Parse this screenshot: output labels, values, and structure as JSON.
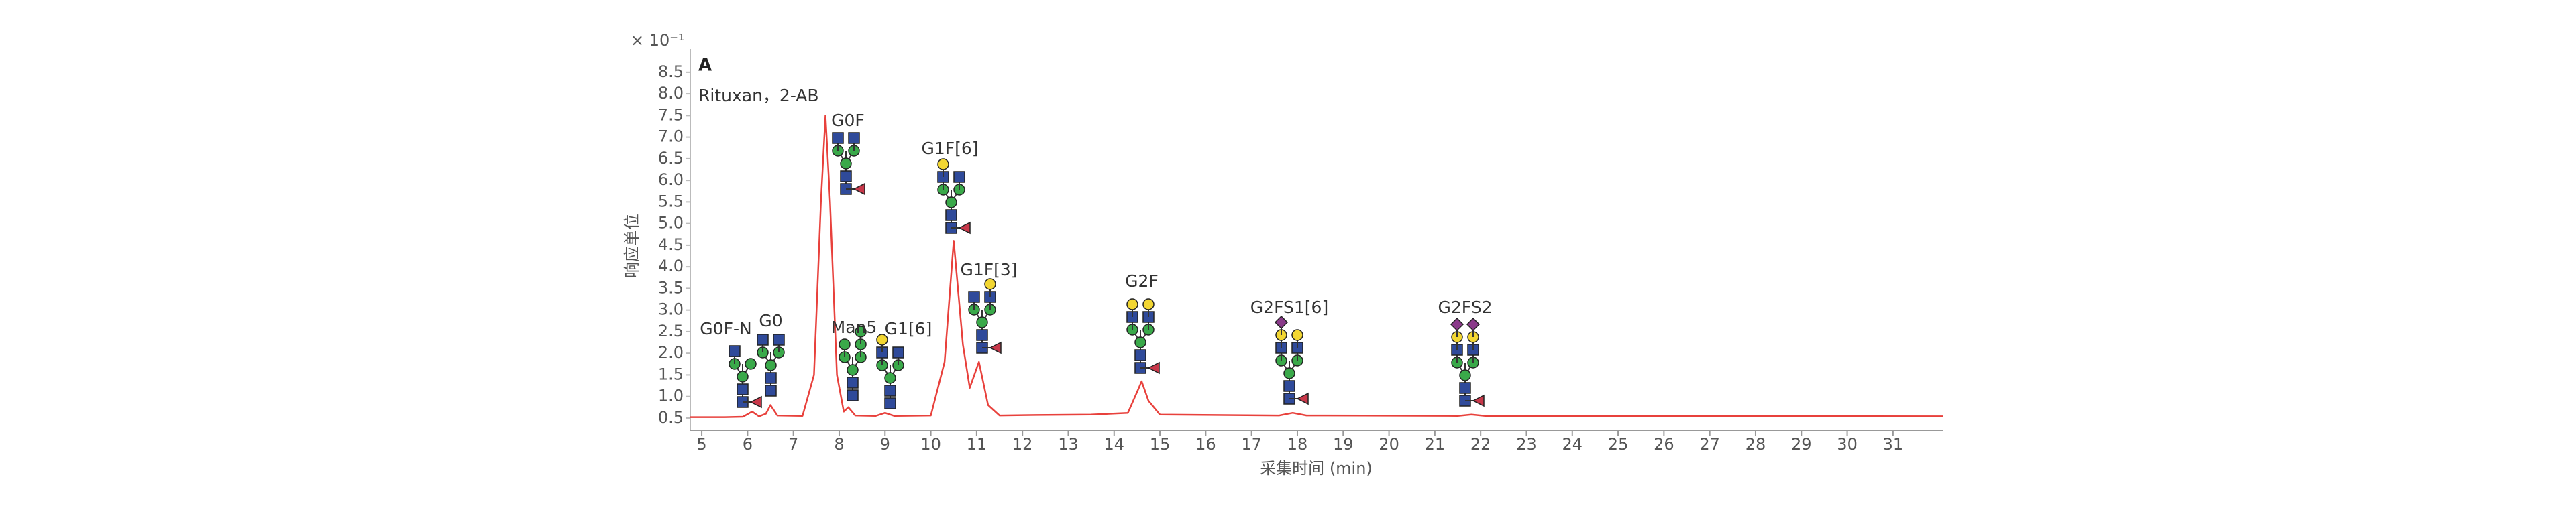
{
  "chart_data": {
    "type": "line",
    "panel_label": "A",
    "subtitle": "Rituxan，2-AB",
    "y_label": "响应单位",
    "y_scale_label": "× 10⁻¹",
    "x_label": "采集时间 (min)",
    "annotations": [
      "G0F-N",
      "G0",
      "G0F",
      "Man5",
      "G1[6]",
      "G1F[6]",
      "G1F[3]",
      "G2F",
      "G2FS1[6]",
      "G2FS2"
    ],
    "series": [
      {
        "color": "#e8413c",
        "x": [
          4.75,
          5.5,
          5.9,
          6.1,
          6.25,
          6.4,
          6.5,
          6.65,
          7.2,
          7.45,
          7.6,
          7.7,
          7.8,
          7.95,
          8.1,
          8.2,
          8.35,
          8.8,
          9.0,
          9.2,
          10.0,
          10.3,
          10.5,
          10.7,
          10.85,
          11.05,
          11.25,
          11.5,
          12.3,
          13.5,
          14.3,
          14.5,
          14.6,
          14.75,
          15.0,
          17.6,
          17.9,
          18.2,
          18.6,
          21.5,
          21.8,
          22.1,
          32.1
        ],
        "values": [
          0.52,
          0.52,
          0.53,
          0.65,
          0.54,
          0.6,
          0.8,
          0.56,
          0.55,
          1.5,
          5.5,
          7.5,
          5.5,
          1.5,
          0.65,
          0.75,
          0.56,
          0.55,
          0.62,
          0.55,
          0.56,
          1.8,
          4.6,
          2.2,
          1.2,
          1.8,
          0.8,
          0.56,
          0.57,
          0.58,
          0.62,
          1.1,
          1.35,
          0.9,
          0.58,
          0.56,
          0.62,
          0.56,
          0.56,
          0.55,
          0.58,
          0.55,
          0.54
        ]
      }
    ],
    "xlim": [
      4.75,
      32.1
    ],
    "ylim": [
      0.22,
      9.04
    ],
    "xticks": [
      5,
      6,
      7,
      8,
      9,
      10,
      11,
      12,
      13,
      14,
      15,
      16,
      17,
      18,
      19,
      20,
      21,
      22,
      23,
      24,
      25,
      26,
      27,
      28,
      29,
      30,
      31
    ],
    "yticks": [
      0.5,
      {
        "value": 1,
        "label": "1.0"
      },
      1.5,
      {
        "value": 2,
        "label": "2.0"
      },
      2.5,
      {
        "value": 3,
        "label": "3.0"
      },
      3.5,
      {
        "value": 4,
        "label": "4.0"
      },
      4.5,
      {
        "value": 5,
        "label": "5.0"
      },
      5.5,
      {
        "value": 6,
        "label": "6.0"
      },
      6.5,
      {
        "value": 7,
        "label": "7.0"
      },
      7.5,
      {
        "value": 8,
        "label": "8.0"
      },
      8.5
    ],
    "grid": false
  }
}
